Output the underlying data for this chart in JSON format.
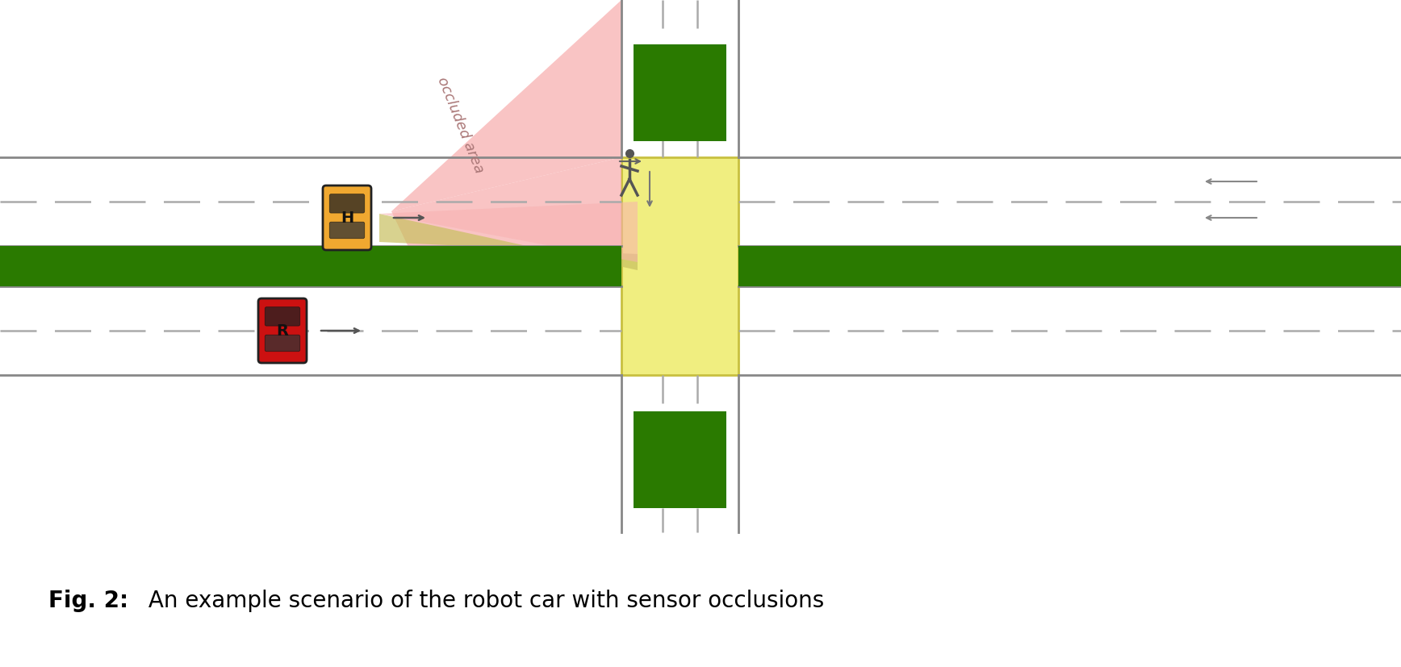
{
  "bg_color": "#ffffff",
  "road_line_color": "#888888",
  "road_dashed_color": "#aaaaaa",
  "green_color": "#2a7a00",
  "yellow_color": "#f0ee80",
  "yellow_border": "#c8c040",
  "pink_color": "#f8b0b0",
  "yellow_beam_color": "#c8c060",
  "caption_bold": "Fig. 2:",
  "caption_rest": " An example scenario of the robot car with sensor occlusions",
  "occluded_label": "occluded area",
  "figure_width": 17.36,
  "figure_height": 8.27
}
